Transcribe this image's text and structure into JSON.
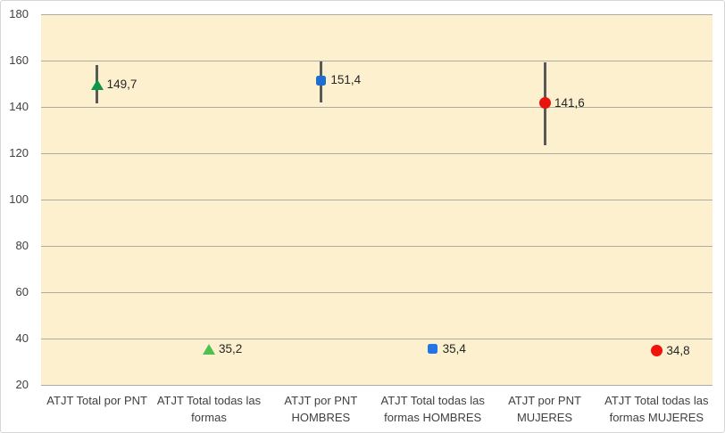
{
  "chart_data": {
    "type": "scatter",
    "title": "",
    "xlabel": "",
    "ylabel": "",
    "ylim": [
      20,
      180
    ],
    "yticks": [
      180,
      160,
      140,
      120,
      100,
      80,
      60,
      40,
      20
    ],
    "grid": true,
    "legend": "none",
    "decimal_separator": ",",
    "colors": {
      "plot_bg": "#FCF0CE",
      "outer_bg": "#FFFFFF",
      "gridline": "#ACACA2",
      "error_bar": "#595959",
      "axis_text": "#404040",
      "label_text": "#262626"
    },
    "categories": [
      {
        "lines": "ATJT Total por PNT"
      },
      {
        "lines": "ATJT Total todas las\nformas"
      },
      {
        "lines": "ATJT por PNT\nHOMBRES"
      },
      {
        "lines": "ATJT Total todas las\nformas HOMBRES"
      },
      {
        "lines": "ATJT por PNT\nMUJERES"
      },
      {
        "lines": "ATJT Total todas las\nformas MUJERES"
      }
    ],
    "series": [
      {
        "category_index": 0,
        "value": 149.7,
        "label": "149,7",
        "marker": "triangle",
        "color": "#0E9648",
        "error_low": 141.5,
        "error_high": 158.0
      },
      {
        "category_index": 1,
        "value": 35.2,
        "label": "35,2",
        "marker": "triangle",
        "color": "#4EC04F",
        "error_low": null,
        "error_high": null
      },
      {
        "category_index": 2,
        "value": 151.4,
        "label": "151,4",
        "marker": "square",
        "color": "#1E6DD2",
        "error_low": 142.0,
        "error_high": 159.8
      },
      {
        "category_index": 3,
        "value": 35.4,
        "label": "35,4",
        "marker": "square",
        "color": "#2374E4",
        "error_low": null,
        "error_high": null
      },
      {
        "category_index": 4,
        "value": 141.6,
        "label": "141,6",
        "marker": "circle",
        "color": "#E8130D",
        "error_low": 123.5,
        "error_high": 159.2
      },
      {
        "category_index": 5,
        "value": 34.8,
        "label": "34,8",
        "marker": "circle",
        "color": "#F2120B",
        "error_low": null,
        "error_high": null
      }
    ]
  }
}
